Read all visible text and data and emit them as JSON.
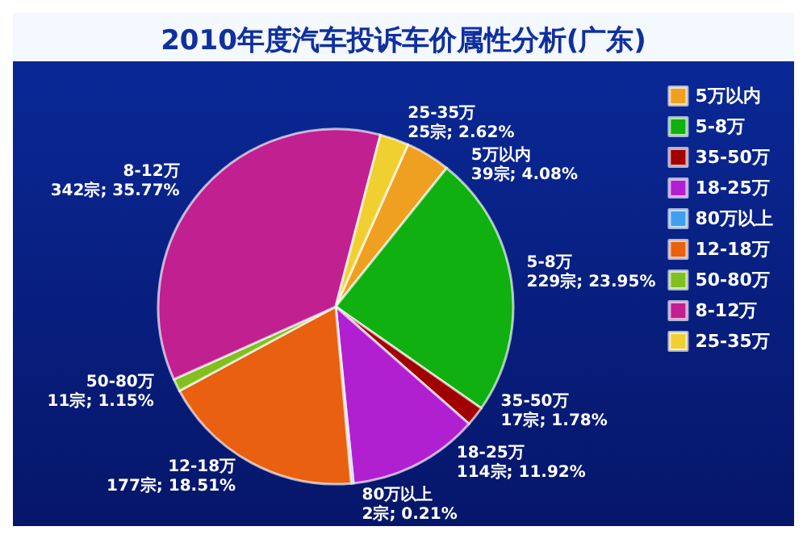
{
  "chart_data": {
    "type": "pie",
    "title": "2010年度汽车投诉车价属性分析(广东)",
    "categories": [
      "5万以内",
      "5-8万",
      "35-50万",
      "18-25万",
      "80万以上",
      "12-18万",
      "50-80万",
      "8-12万",
      "25-35万"
    ],
    "values": [
      39,
      229,
      17,
      114,
      2,
      177,
      11,
      342,
      25
    ],
    "value_labels": [
      "39宗; 4.08%",
      "229宗; 23.95%",
      "17宗; 1.78%",
      "114宗; 11.92%",
      "2宗; 0.21%",
      "177宗; 18.51%",
      "11宗; 1.15%",
      "342宗; 35.77%",
      "25宗; 2.62%"
    ],
    "colors": [
      "#f0a020",
      "#10b010",
      "#a00000",
      "#b020d0",
      "#40a0f0",
      "#e86010",
      "#80c020",
      "#c02090",
      "#f0d030"
    ],
    "legend": "right"
  }
}
